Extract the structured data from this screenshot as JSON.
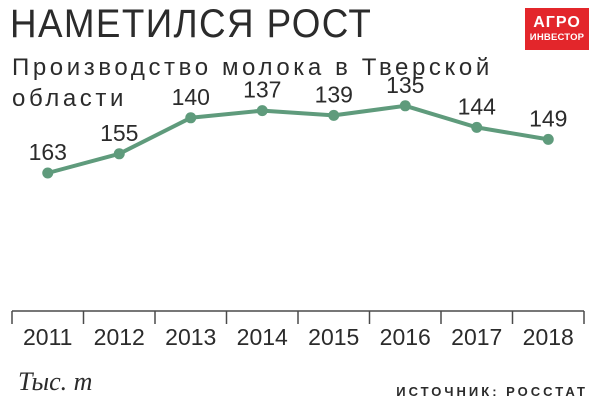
{
  "header": {
    "title": "НАМЕТИЛСЯ РОСТ",
    "subtitle": "Производство молока в Тверской области"
  },
  "logo": {
    "line1": "АГРО",
    "line2": "ИНВЕСТОР"
  },
  "colors": {
    "line": "#5f9b7c",
    "axis": "#4a4a4a",
    "text": "#2b2b2b",
    "logo": "#e3262b"
  },
  "chart_data": {
    "type": "line",
    "title": "Производство молока в Тверской области",
    "categories": [
      "2011",
      "2012",
      "2013",
      "2014",
      "2015",
      "2016",
      "2017",
      "2018"
    ],
    "values": [
      163,
      155,
      140,
      137,
      139,
      135,
      144,
      149
    ],
    "unit_label": "Тыс. т",
    "grid": false,
    "legend": "none"
  },
  "footer": {
    "unit": "Тыс. т",
    "source": "ИСТОЧНИК: РОССТАТ"
  }
}
